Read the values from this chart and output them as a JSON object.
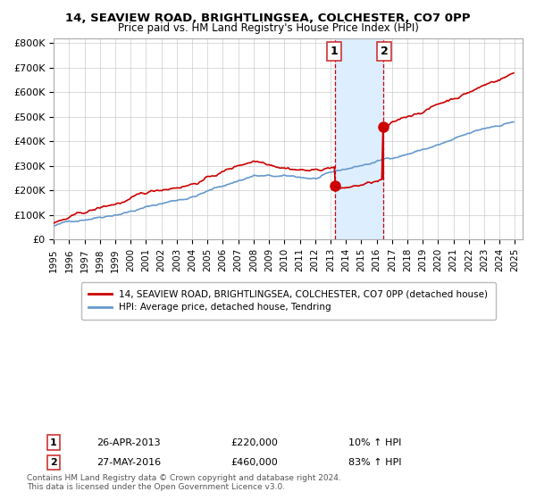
{
  "title1": "14, SEAVIEW ROAD, BRIGHTLINGSEA, COLCHESTER, CO7 0PP",
  "title2": "Price paid vs. HM Land Registry's House Price Index (HPI)",
  "xlabel": "",
  "ylabel": "",
  "ylim": [
    0,
    820000
  ],
  "xlim_start": 1995.0,
  "xlim_end": 2025.5,
  "yticks": [
    0,
    100000,
    200000,
    300000,
    400000,
    500000,
    600000,
    700000,
    800000
  ],
  "ytick_labels": [
    "£0",
    "£100K",
    "£200K",
    "£300K",
    "£400K",
    "£500K",
    "£600K",
    "£700K",
    "£800K"
  ],
  "xtick_labels": [
    "1995",
    "1996",
    "1997",
    "1998",
    "1999",
    "2000",
    "2001",
    "2002",
    "2003",
    "2004",
    "2005",
    "2006",
    "2007",
    "2008",
    "2009",
    "2010",
    "2011",
    "2012",
    "2013",
    "2014",
    "2015",
    "2016",
    "2017",
    "2018",
    "2019",
    "2020",
    "2021",
    "2022",
    "2023",
    "2024",
    "2025"
  ],
  "hpi_color": "#6699cc",
  "price_color": "#cc0000",
  "dot_color": "#cc0000",
  "background_color": "#ffffff",
  "grid_color": "#cccccc",
  "sale1_x": 2013.32,
  "sale1_y": 220000,
  "sale2_x": 2016.41,
  "sale2_y": 460000,
  "sale1_label": "1",
  "sale2_label": "2",
  "shade_start": 2013.32,
  "shade_end": 2016.41,
  "shade_color": "#ddeeff",
  "legend_line1": "14, SEAVIEW ROAD, BRIGHTLINGSEA, COLCHESTER, CO7 0PP (detached house)",
  "legend_line2": "HPI: Average price, detached house, Tendring",
  "note1_label": "1",
  "note1_date": "26-APR-2013",
  "note1_price": "£220,000",
  "note1_hpi": "10% ↑ HPI",
  "note2_label": "2",
  "note2_date": "27-MAY-2016",
  "note2_price": "£460,000",
  "note2_hpi": "83% ↑ HPI",
  "footer": "Contains HM Land Registry data © Crown copyright and database right 2024.\nThis data is licensed under the Open Government Licence v3.0."
}
